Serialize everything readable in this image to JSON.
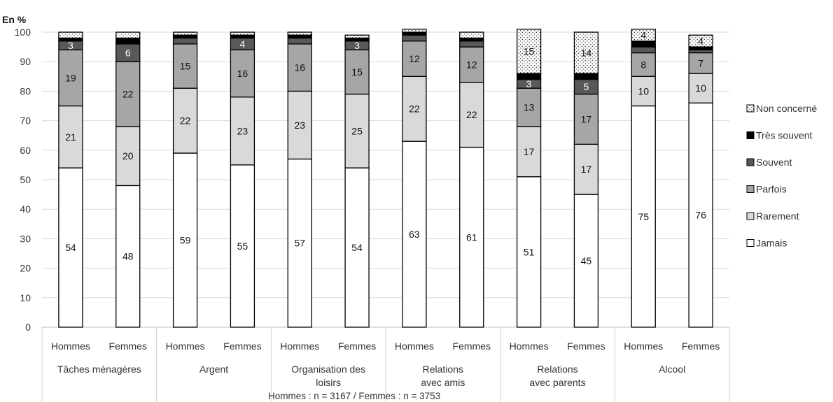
{
  "chart_data": {
    "type": "stacked-bar",
    "ylabel": "En %",
    "ylim": [
      0,
      100
    ],
    "yticks": [
      0,
      10,
      20,
      30,
      40,
      50,
      60,
      70,
      80,
      90,
      100
    ],
    "note": "Hommes : n = 3167 / Femmes : n = 3753",
    "legend_position": "right",
    "grid": true,
    "groups": [
      "Tâches ménagères",
      "Argent",
      "Organisation des loisirs",
      "Relations avec amis",
      "Relations avec parents",
      "Alcool"
    ],
    "group_label_lines": [
      [
        "Tâches ménagères"
      ],
      [
        "Argent"
      ],
      [
        "Organisation des",
        "loisirs"
      ],
      [
        "Relations",
        "avec amis"
      ],
      [
        "Relations",
        "avec parents"
      ],
      [
        "Alcool"
      ]
    ],
    "subcategories": [
      "Hommes",
      "Femmes"
    ],
    "series_order_top_to_bottom": [
      "Non concerné",
      "Très souvent",
      "Souvent",
      "Parfois",
      "Rarement",
      "Jamais"
    ],
    "series": [
      {
        "name": "Jamais",
        "color": "#ffffff",
        "values": [
          54,
          48,
          59,
          55,
          57,
          54,
          63,
          61,
          51,
          45,
          75,
          76
        ]
      },
      {
        "name": "Rarement",
        "color": "#d9d9d9",
        "values": [
          21,
          20,
          22,
          23,
          23,
          25,
          22,
          22,
          17,
          17,
          10,
          10
        ]
      },
      {
        "name": "Parfois",
        "color": "#a6a6a6",
        "values": [
          19,
          22,
          15,
          16,
          16,
          15,
          12,
          12,
          13,
          17,
          8,
          7
        ]
      },
      {
        "name": "Souvent",
        "color": "#595959",
        "values": [
          3,
          6,
          2,
          4,
          2,
          3,
          2,
          2,
          3,
          5,
          2,
          1
        ]
      },
      {
        "name": "Très souvent",
        "color": "#000000",
        "values": [
          1,
          2,
          1,
          1,
          1,
          1,
          1,
          1,
          2,
          2,
          2,
          1
        ]
      },
      {
        "name": "Non concerné",
        "color": "#f2f2f2",
        "pattern": "dots",
        "values": [
          2,
          2,
          1,
          1,
          1,
          1,
          1,
          2,
          15,
          14,
          4,
          4
        ]
      }
    ],
    "data_labels": [
      {
        "bar": 0,
        "series": "Jamais",
        "text": "54"
      },
      {
        "bar": 0,
        "series": "Rarement",
        "text": "21"
      },
      {
        "bar": 0,
        "series": "Parfois",
        "text": "19"
      },
      {
        "bar": 0,
        "series": "Souvent",
        "text": "3"
      },
      {
        "bar": 1,
        "series": "Jamais",
        "text": "48"
      },
      {
        "bar": 1,
        "series": "Rarement",
        "text": "20"
      },
      {
        "bar": 1,
        "series": "Parfois",
        "text": "22"
      },
      {
        "bar": 1,
        "series": "Souvent",
        "text": "6"
      },
      {
        "bar": 2,
        "series": "Jamais",
        "text": "59"
      },
      {
        "bar": 2,
        "series": "Rarement",
        "text": "22"
      },
      {
        "bar": 2,
        "series": "Parfois",
        "text": "15"
      },
      {
        "bar": 3,
        "series": "Jamais",
        "text": "55"
      },
      {
        "bar": 3,
        "series": "Rarement",
        "text": "23"
      },
      {
        "bar": 3,
        "series": "Parfois",
        "text": "16"
      },
      {
        "bar": 3,
        "series": "Souvent",
        "text": "4"
      },
      {
        "bar": 4,
        "series": "Jamais",
        "text": "57"
      },
      {
        "bar": 4,
        "series": "Rarement",
        "text": "23"
      },
      {
        "bar": 4,
        "series": "Parfois",
        "text": "16"
      },
      {
        "bar": 5,
        "series": "Jamais",
        "text": "54"
      },
      {
        "bar": 5,
        "series": "Rarement",
        "text": "25"
      },
      {
        "bar": 5,
        "series": "Parfois",
        "text": "15"
      },
      {
        "bar": 5,
        "series": "Souvent",
        "text": "3"
      },
      {
        "bar": 6,
        "series": "Jamais",
        "text": "63"
      },
      {
        "bar": 6,
        "series": "Rarement",
        "text": "22"
      },
      {
        "bar": 6,
        "series": "Parfois",
        "text": "12"
      },
      {
        "bar": 7,
        "series": "Jamais",
        "text": "61"
      },
      {
        "bar": 7,
        "series": "Rarement",
        "text": "22"
      },
      {
        "bar": 7,
        "series": "Parfois",
        "text": "12"
      },
      {
        "bar": 8,
        "series": "Jamais",
        "text": "51"
      },
      {
        "bar": 8,
        "series": "Rarement",
        "text": "17"
      },
      {
        "bar": 8,
        "series": "Parfois",
        "text": "13"
      },
      {
        "bar": 8,
        "series": "Souvent",
        "text": "3"
      },
      {
        "bar": 8,
        "series": "Non concerné",
        "text": "15"
      },
      {
        "bar": 9,
        "series": "Jamais",
        "text": "45"
      },
      {
        "bar": 9,
        "series": "Rarement",
        "text": "17"
      },
      {
        "bar": 9,
        "series": "Parfois",
        "text": "17"
      },
      {
        "bar": 9,
        "series": "Souvent",
        "text": "5"
      },
      {
        "bar": 9,
        "series": "Non concerné",
        "text": "14"
      },
      {
        "bar": 10,
        "series": "Jamais",
        "text": "75"
      },
      {
        "bar": 10,
        "series": "Rarement",
        "text": "10"
      },
      {
        "bar": 10,
        "series": "Parfois",
        "text": "8"
      },
      {
        "bar": 10,
        "series": "Non concerné",
        "text": "4"
      },
      {
        "bar": 11,
        "series": "Jamais",
        "text": "76"
      },
      {
        "bar": 11,
        "series": "Rarement",
        "text": "10"
      },
      {
        "bar": 11,
        "series": "Parfois",
        "text": "7"
      },
      {
        "bar": 11,
        "series": "Non concerné",
        "text": "4"
      }
    ]
  }
}
